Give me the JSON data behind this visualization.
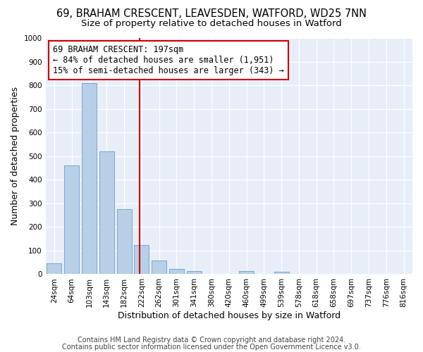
{
  "title1": "69, BRAHAM CRESCENT, LEAVESDEN, WATFORD, WD25 7NN",
  "title2": "Size of property relative to detached houses in Watford",
  "xlabel": "Distribution of detached houses by size in Watford",
  "ylabel": "Number of detached properties",
  "footnote1": "Contains HM Land Registry data © Crown copyright and database right 2024.",
  "footnote2": "Contains public sector information licensed under the Open Government Licence v3.0.",
  "annotation_line1": "69 BRAHAM CRESCENT: 197sqm",
  "annotation_line2": "← 84% of detached houses are smaller (1,951)",
  "annotation_line3": "15% of semi-detached houses are larger (343) →",
  "categories": [
    "24sqm",
    "64sqm",
    "103sqm",
    "143sqm",
    "182sqm",
    "222sqm",
    "262sqm",
    "301sqm",
    "341sqm",
    "380sqm",
    "420sqm",
    "460sqm",
    "499sqm",
    "539sqm",
    "578sqm",
    "618sqm",
    "658sqm",
    "697sqm",
    "737sqm",
    "776sqm",
    "816sqm"
  ],
  "values": [
    46,
    460,
    810,
    520,
    275,
    125,
    57,
    22,
    12,
    0,
    0,
    12,
    0,
    9,
    0,
    0,
    0,
    0,
    0,
    0,
    0
  ],
  "vline_pos": 4.9,
  "ylim_max": 1000,
  "yticks": [
    0,
    100,
    200,
    300,
    400,
    500,
    600,
    700,
    800,
    900,
    1000
  ],
  "bar_color": "#b8cfe8",
  "bar_edge_color": "#6a9fc8",
  "bg_color": "#e8eef8",
  "grid_color": "#ffffff",
  "vline_color": "#cc0000",
  "ann_box_color": "#cc0000",
  "title_fontsize": 10.5,
  "subtitle_fontsize": 9.5,
  "axis_label_fontsize": 9,
  "tick_fontsize": 7.5,
  "ann_fontsize": 8.5,
  "footnote_fontsize": 7
}
